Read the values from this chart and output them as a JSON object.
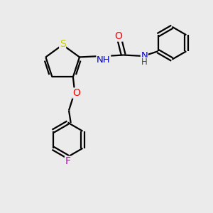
{
  "background_color": "#ebebeb",
  "bond_color": "#000000",
  "atom_colors": {
    "S": "#cccc00",
    "O": "#ff0000",
    "N": "#0000cc",
    "F": "#cc00cc",
    "C": "#000000",
    "H": "#444444"
  },
  "figsize": [
    3.0,
    3.0
  ],
  "dpi": 100,
  "lw": 1.6,
  "fontsize": 9.5
}
